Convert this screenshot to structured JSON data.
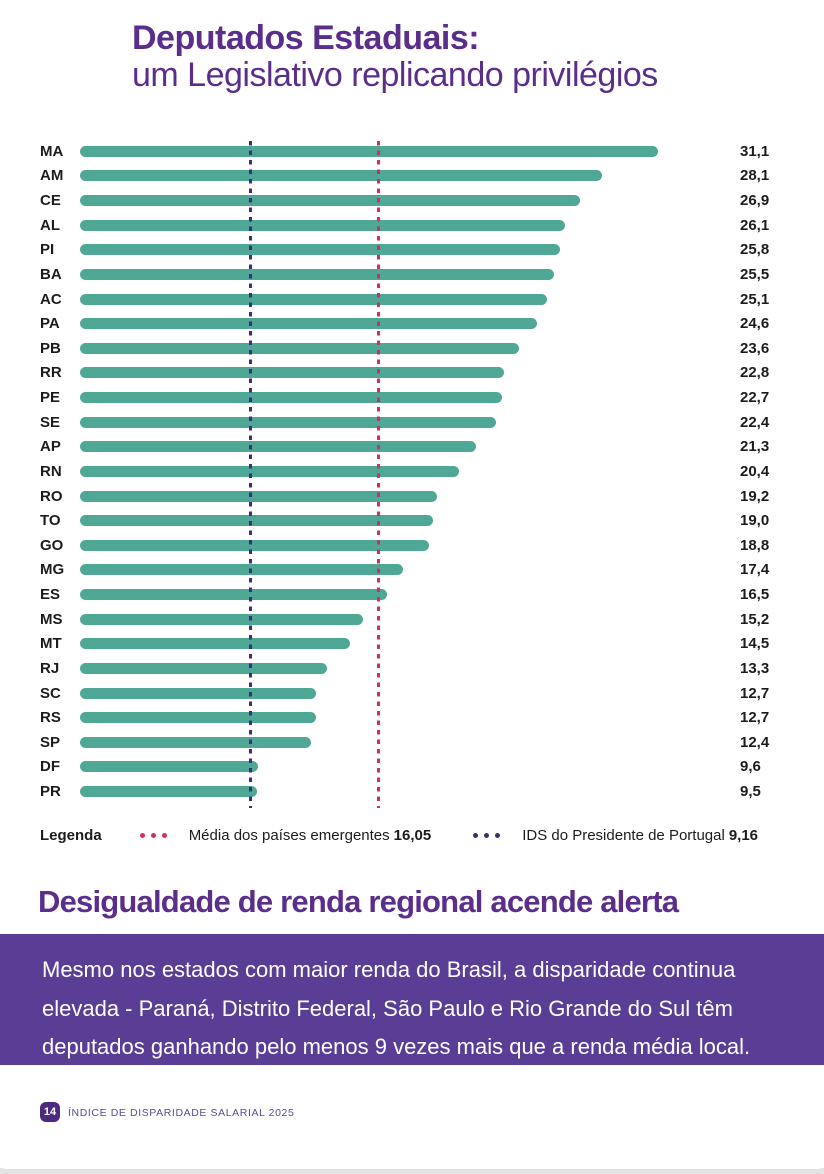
{
  "page": {
    "title_line1": "Deputados Estaduais:",
    "title_line2": "um Legislativo replicando privilégios"
  },
  "chart_data": {
    "type": "bar",
    "orientation": "horizontal",
    "title": "Deputados Estaduais: um Legislativo replicando privilégios",
    "categories": [
      "MA",
      "AM",
      "CE",
      "AL",
      "PI",
      "BA",
      "AC",
      "PA",
      "PB",
      "RR",
      "PE",
      "SE",
      "AP",
      "RN",
      "RO",
      "TO",
      "GO",
      "MG",
      "ES",
      "MS",
      "MT",
      "RJ",
      "SC",
      "RS",
      "SP",
      "DF",
      "PR"
    ],
    "values": [
      31.1,
      28.1,
      26.9,
      26.1,
      25.8,
      25.5,
      25.1,
      24.6,
      23.6,
      22.8,
      22.7,
      22.4,
      21.3,
      20.4,
      19.2,
      19.0,
      18.8,
      17.4,
      16.5,
      15.2,
      14.5,
      13.3,
      12.7,
      12.7,
      12.4,
      9.6,
      9.5
    ],
    "value_labels": [
      "31,1",
      "28,1",
      "26,9",
      "26,1",
      "25,8",
      "25,5",
      "25,1",
      "24,6",
      "23,6",
      "22,8",
      "22,7",
      "22,4",
      "21,3",
      "20,4",
      "19,2",
      "19,0",
      "18,8",
      "17,4",
      "16,5",
      "15,2",
      "14,5",
      "13,3",
      "12,7",
      "12,7",
      "12,4",
      "9,6",
      "9,5"
    ],
    "xlim": [
      0,
      33.4
    ],
    "grid": false,
    "legend_position": "bottom",
    "legend_title": "Legenda",
    "bar_color": "#4fa795",
    "reference_lines": [
      {
        "label": "Média dos países emergentes",
        "value": 16.05,
        "value_label": "16,05",
        "color": "#d12e66"
      },
      {
        "label": "IDS do Presidente de Portugal",
        "value": 9.16,
        "value_label": "9,16",
        "color": "#3d2f73"
      }
    ]
  },
  "section": {
    "heading": "Desigualdade de renda regional acende alerta",
    "body": "Mesmo nos estados com maior renda do Brasil, a disparidade continua elevada  - Paraná, Distrito Federal, São Paulo e Rio Grande do Sul têm deputados ganhando pelo menos 9 vezes mais que a renda média local."
  },
  "footer": {
    "page_number": "14",
    "label": "ÍNDICE DE DISPARIDADE SALARIAL 2025"
  },
  "colors": {
    "accent_purple": "#5b2e8c",
    "bar_teal": "#4fa795",
    "line_pink": "#d12e66",
    "line_dark_purple": "#3d2f73",
    "box_purple": "#5a3d94",
    "badge_purple": "#4b2b7d",
    "text_dark": "#1c1c1e"
  }
}
